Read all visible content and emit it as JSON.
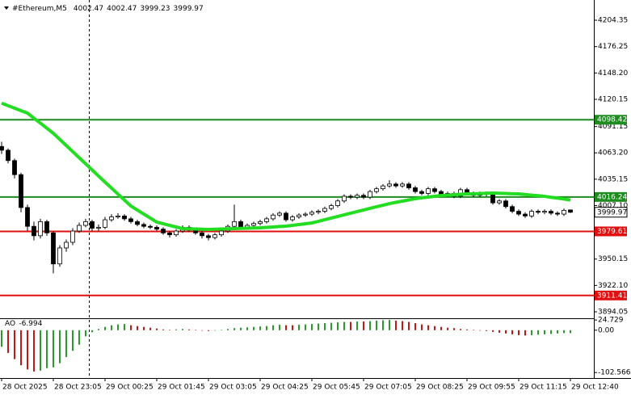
{
  "chart_data": {
    "type": "candlestick",
    "title": "#Ethereum,M5",
    "categories": [
      "28 Oct 2025",
      null,
      null,
      null,
      null,
      null,
      null,
      null,
      "28 Oct 23:05",
      null,
      null,
      null,
      null,
      null,
      null,
      null,
      "29 Oct 00:25",
      null,
      null,
      null,
      null,
      null,
      null,
      null,
      "29 Oct 01:45",
      null,
      null,
      null,
      null,
      null,
      null,
      null,
      "29 Oct 03:05",
      null,
      null,
      null,
      null,
      null,
      null,
      null,
      "29 Oct 04:25",
      null,
      null,
      null,
      null,
      null,
      null,
      null,
      "29 Oct 05:45",
      null,
      null,
      null,
      null,
      null,
      null,
      null,
      "29 Oct 07:05",
      null,
      null,
      null,
      null,
      null,
      null,
      null,
      "29 Oct 08:25",
      null,
      null,
      null,
      null,
      null,
      null,
      null,
      "29 Oct 09:55",
      null,
      null,
      null,
      null,
      null,
      null,
      null,
      "29 Oct 11:15",
      null,
      null,
      null,
      null,
      null,
      null,
      null,
      "29 Oct 12:40"
    ],
    "open": [
      4070,
      4066,
      4055,
      4040,
      4005,
      3985,
      3975,
      3990,
      3978,
      3945,
      3962,
      3968,
      3980,
      3986,
      3990,
      3983,
      3984,
      3992,
      3995,
      3996,
      3993,
      3990,
      3987,
      3985,
      3984,
      3982,
      3978,
      3976,
      3980,
      3984,
      3981,
      3978,
      3975,
      3973,
      3976,
      3980,
      3985,
      3990,
      3984,
      3986,
      3988,
      3990,
      3993,
      3997,
      3999,
      3992,
      3995,
      3997,
      3998,
      4000,
      4001,
      4004,
      4007,
      4012,
      4017,
      4016,
      4018,
      4016,
      4022,
      4025,
      4028,
      4030,
      4028,
      4030,
      4026,
      4022,
      4020,
      4025,
      4022,
      4018,
      4020,
      4017,
      4024,
      4020,
      4018,
      4020,
      4019,
      4010,
      4012,
      4006,
      4001,
      3998,
      3996,
      4001,
      4000,
      4001,
      3999,
      3998,
      4002.47
    ],
    "high": [
      4075,
      4068,
      4057,
      4042,
      4008,
      3990,
      3993,
      3992,
      3980,
      3965,
      3971,
      3983,
      3989,
      3993,
      3992,
      3987,
      3995,
      3998,
      3999,
      3998,
      3995,
      3992,
      3989,
      3987,
      3986,
      3984,
      3980,
      3982,
      3986,
      3986,
      3983,
      3980,
      3977,
      3978,
      3982,
      3987,
      4008,
      3992,
      3988,
      3990,
      3992,
      3995,
      3999,
      4001,
      4001,
      3997,
      3999,
      4000,
      4002,
      4003,
      4006,
      4009,
      4014,
      4019,
      4019,
      4020,
      4020,
      4024,
      4027,
      4030,
      4034,
      4032,
      4032,
      4032,
      4028,
      4024,
      4027,
      4027,
      4024,
      4022,
      4022,
      4026,
      4026,
      4022,
      4022,
      4022,
      4021,
      4014,
      4014,
      4008,
      4003,
      4000,
      4003,
      4003,
      4003,
      4003,
      4001,
      4004,
      4002.47
    ],
    "low": [
      4062,
      4052,
      4036,
      4000,
      3980,
      3970,
      3972,
      3975,
      3935,
      3942,
      3958,
      3965,
      3978,
      3984,
      3980,
      3980,
      3982,
      3990,
      3993,
      3991,
      3988,
      3985,
      3983,
      3982,
      3980,
      3976,
      3973,
      3974,
      3978,
      3979,
      3976,
      3972,
      3970,
      3971,
      3974,
      3978,
      3983,
      3982,
      3982,
      3984,
      3986,
      3988,
      3991,
      3995,
      3990,
      3990,
      3993,
      3995,
      3996,
      3998,
      3999,
      4002,
      4005,
      4010,
      4014,
      4014,
      4014,
      4014,
      4020,
      4023,
      4026,
      4026,
      4026,
      4024,
      4020,
      4018,
      4018,
      4020,
      4016,
      4016,
      4015,
      4015,
      4018,
      4016,
      4016,
      4017,
      4008,
      4008,
      4004,
      3999,
      3996,
      3994,
      3994,
      3998,
      3998,
      3997,
      3996,
      3996,
      3999.23
    ],
    "close": [
      4066,
      4055,
      4040,
      4005,
      3985,
      3975,
      3990,
      3978,
      3945,
      3962,
      3968,
      3980,
      3986,
      3990,
      3983,
      3984,
      3992,
      3995,
      3996,
      3993,
      3990,
      3987,
      3985,
      3984,
      3982,
      3978,
      3976,
      3980,
      3984,
      3981,
      3978,
      3975,
      3973,
      3976,
      3980,
      3985,
      3990,
      3984,
      3986,
      3988,
      3990,
      3993,
      3997,
      3999,
      3992,
      3995,
      3997,
      3998,
      4000,
      4001,
      4004,
      4007,
      4012,
      4017,
      4016,
      4018,
      4016,
      4022,
      4025,
      4028,
      4030,
      4028,
      4030,
      4026,
      4022,
      4020,
      4025,
      4022,
      4018,
      4020,
      4017,
      4024,
      4020,
      4018,
      4020,
      4019,
      4010,
      4012,
      4006,
      4001,
      3998,
      3996,
      4001,
      4000,
      4001,
      3999,
      3998,
      4002,
      3999.97
    ],
    "up_color": "#ffffff",
    "down_color": "#000000",
    "candle_stroke": "#000000",
    "ma_values": [
      4116,
      4113.4,
      4110.8,
      4108.1,
      4105.5,
      4100.1,
      4094.8,
      4089.4,
      4084,
      4077.5,
      4071,
      4064.5,
      4058,
      4051.5,
      4045,
      4038.5,
      4032,
      4025.7,
      4019.3,
      4013,
      4006.6,
      4002.3,
      3998,
      3993.8,
      3989.5,
      3987.8,
      3986,
      3984.3,
      3982.6,
      3982.4,
      3982.2,
      3981.9,
      3981.7,
      3981.9,
      3982.1,
      3982.4,
      3982.6,
      3982.8,
      3983,
      3983.2,
      3983.4,
      3983.9,
      3984.3,
      3984.8,
      3985.2,
      3986,
      3986.9,
      3987.7,
      3988.6,
      3990.3,
      3992.1,
      3993.8,
      3995.5,
      3997.2,
      3999,
      4000.7,
      4002.4,
      4004.1,
      4005.8,
      4007.5,
      4009.2,
      4010.5,
      4011.8,
      4013.1,
      4014.4,
      4015.3,
      4016.1,
      4017,
      4017.8,
      4018.2,
      4018.7,
      4019.1,
      4019.5,
      4019.7,
      4019.9,
      4020.2,
      4020.4,
      4020.2,
      4020,
      4019.7,
      4019.5,
      4018.9,
      4018.2,
      4017.6,
      4016.9,
      4015.9,
      4015,
      4014,
      4013
    ],
    "ma_color": "#22dd22",
    "levels": [
      {
        "value": 4098.42,
        "color": "#1e8c1e"
      },
      {
        "value": 4016.24,
        "color": "#1e8c1e"
      },
      {
        "value": 3979.61,
        "color": "#e01010"
      },
      {
        "value": 3911.41,
        "color": "#e01010"
      }
    ],
    "ylim": [
      3888.03,
      4223.26
    ],
    "yticks": [
      4204.35,
      4176.25,
      {
        "value": 4148.2,
        "label": "4148.20"
      },
      4120.15,
      4091.15,
      {
        "value": 4063.2,
        "label": "4063.20"
      },
      4035.15,
      {
        "value": 4007.1,
        "label": "4007.10"
      },
      3950.15,
      {
        "value": 3922.1,
        "label": "3922.10"
      },
      3894.05
    ],
    "ao": {
      "label": "AO",
      "values": [
        -40,
        -55,
        -70,
        -85,
        -95,
        -100,
        -98,
        -92,
        -90,
        -80,
        -65,
        -50,
        -35,
        -15,
        -5,
        3,
        8,
        12,
        14,
        15,
        12,
        10,
        8,
        6,
        4,
        2,
        1,
        2,
        3,
        2,
        0.5,
        -1,
        -2,
        -1,
        1,
        3,
        5,
        6,
        7,
        8,
        9,
        10,
        12,
        13,
        12,
        12,
        13,
        14,
        15,
        16,
        17,
        18,
        19,
        20,
        20,
        21,
        21,
        22,
        23,
        24,
        24.7,
        23,
        22,
        20,
        17,
        14,
        12,
        10,
        8,
        6,
        5,
        3,
        2,
        0.5,
        -1,
        -2,
        -4,
        -6,
        -8,
        -10,
        -12,
        -13,
        -12,
        -11,
        -10,
        -9,
        -8,
        -7,
        -6.994
      ],
      "up_color": "#2a9a2a",
      "down_color": "#c01818",
      "ylim": [
        -112,
        25
      ],
      "yticks": [
        24.729,
        {
          "value": 0,
          "label": "0.00"
        },
        -102.566
      ]
    }
  }
}
